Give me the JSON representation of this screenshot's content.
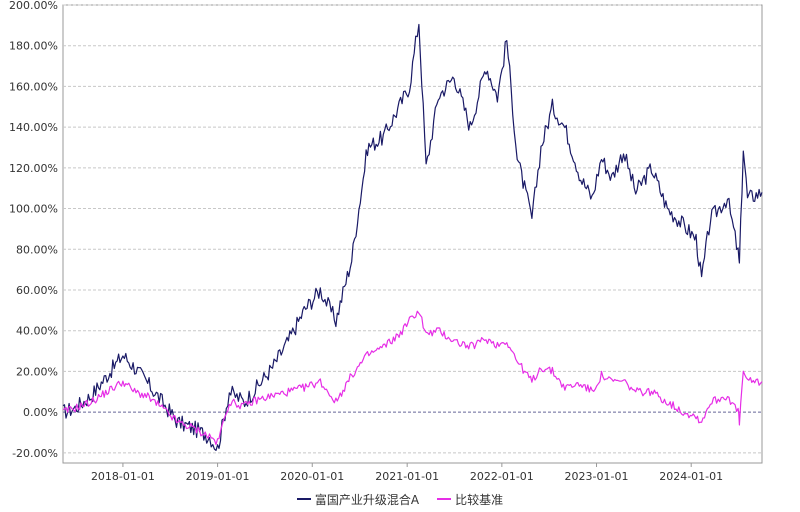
{
  "chart_data": {
    "type": "line",
    "title": "",
    "xlabel": "",
    "ylabel": "",
    "x_range": [
      "2017-05-15",
      "2024-09-30"
    ],
    "ylim": [
      -25,
      200
    ],
    "y_ticks": [
      -20,
      0,
      20,
      40,
      60,
      80,
      100,
      120,
      140,
      160,
      180,
      200
    ],
    "y_tick_labels": [
      "-20.00%",
      "0.00%",
      "20.00%",
      "40.00%",
      "60.00%",
      "80.00%",
      "100.00%",
      "120.00%",
      "140.00%",
      "160.00%",
      "180.00%",
      "200.00%"
    ],
    "x_ticks": [
      "2018-01-01",
      "2019-01-01",
      "2020-01-01",
      "2021-01-01",
      "2022-01-01",
      "2023-01-01",
      "2024-01-01"
    ],
    "x_tick_labels": [
      "2018-01-01",
      "2019-01-01",
      "2020-01-01",
      "2021-01-01",
      "2022-01-01",
      "2023-01-01",
      "2024-01-01"
    ],
    "grid": "horizontal dashed",
    "legend_position": "bottom",
    "series": [
      {
        "name": "富国产业升级混合A",
        "color": "#1a1a66",
        "x": [
          "2017-05-15",
          "2017-07-01",
          "2017-09-01",
          "2017-11-01",
          "2018-01-01",
          "2018-02-15",
          "2018-04-01",
          "2018-06-01",
          "2018-08-01",
          "2018-10-01",
          "2018-12-01",
          "2019-01-01",
          "2019-02-15",
          "2019-04-15",
          "2019-06-01",
          "2019-08-01",
          "2019-10-01",
          "2019-12-01",
          "2020-02-01",
          "2020-04-01",
          "2020-06-01",
          "2020-08-01",
          "2020-10-01",
          "2020-12-01",
          "2021-01-10",
          "2021-02-15",
          "2021-03-15",
          "2021-05-01",
          "2021-07-01",
          "2021-09-01",
          "2021-11-01",
          "2021-12-15",
          "2022-01-20",
          "2022-03-01",
          "2022-04-27",
          "2022-06-01",
          "2022-07-15",
          "2022-09-01",
          "2022-11-01",
          "2022-12-15",
          "2023-01-20",
          "2023-03-01",
          "2023-04-15",
          "2023-06-01",
          "2023-08-01",
          "2023-10-01",
          "2023-12-01",
          "2024-01-20",
          "2024-02-10",
          "2024-03-15",
          "2024-05-20",
          "2024-06-30",
          "2024-07-05",
          "2024-07-20",
          "2024-08-05",
          "2024-09-30"
        ],
        "values": [
          0,
          2,
          8,
          18,
          28,
          22,
          15,
          5,
          -5,
          -8,
          -12,
          -18,
          10,
          5,
          12,
          22,
          35,
          50,
          60,
          45,
          75,
          130,
          135,
          150,
          160,
          192,
          120,
          155,
          165,
          140,
          170,
          155,
          183,
          125,
          95,
          130,
          150,
          140,
          115,
          105,
          125,
          115,
          128,
          108,
          120,
          100,
          92,
          85,
          65,
          95,
          105,
          78,
          72,
          130,
          105,
          108
        ]
      },
      {
        "name": "比较基准",
        "color": "#e62ee6",
        "x": [
          "2017-05-15",
          "2017-07-01",
          "2017-09-01",
          "2017-11-01",
          "2018-01-01",
          "2018-02-15",
          "2018-04-01",
          "2018-06-01",
          "2018-08-01",
          "2018-10-01",
          "2018-12-01",
          "2019-01-01",
          "2019-02-15",
          "2019-04-15",
          "2019-06-01",
          "2019-08-01",
          "2019-10-01",
          "2019-12-01",
          "2020-02-01",
          "2020-04-01",
          "2020-06-01",
          "2020-08-01",
          "2020-10-01",
          "2020-12-01",
          "2021-01-10",
          "2021-02-15",
          "2021-03-15",
          "2021-05-01",
          "2021-07-01",
          "2021-09-01",
          "2021-11-01",
          "2021-12-15",
          "2022-01-20",
          "2022-03-01",
          "2022-04-27",
          "2022-06-01",
          "2022-07-15",
          "2022-09-01",
          "2022-11-01",
          "2022-12-15",
          "2023-01-20",
          "2023-03-01",
          "2023-04-15",
          "2023-06-01",
          "2023-08-01",
          "2023-10-01",
          "2023-12-01",
          "2024-01-20",
          "2024-02-10",
          "2024-03-15",
          "2024-05-20",
          "2024-06-30",
          "2024-07-05",
          "2024-07-20",
          "2024-08-05",
          "2024-09-30"
        ],
        "values": [
          0,
          2,
          5,
          10,
          15,
          10,
          8,
          2,
          -5,
          -8,
          -12,
          -15,
          5,
          3,
          6,
          8,
          10,
          12,
          15,
          5,
          18,
          28,
          32,
          38,
          45,
          50,
          38,
          40,
          35,
          32,
          36,
          33,
          35,
          25,
          15,
          22,
          20,
          12,
          14,
          10,
          18,
          15,
          15,
          10,
          10,
          5,
          0,
          -2,
          -5,
          5,
          8,
          0,
          -5,
          20,
          15,
          15
        ]
      }
    ]
  }
}
